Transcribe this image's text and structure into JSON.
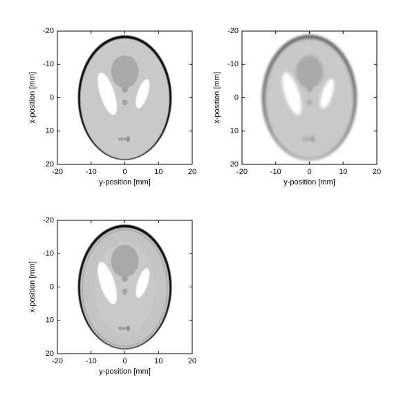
{
  "chart_data": [
    {
      "type": "image",
      "xlabel": "y-position [mm]",
      "ylabel": "x-position [mm]",
      "xlim": [
        -20,
        20
      ],
      "ylim": [
        -20,
        20
      ],
      "y_reversed": true,
      "xticks": [
        -20,
        -10,
        0,
        10,
        20
      ],
      "yticks": [
        -20,
        -10,
        0,
        10,
        20
      ]
    },
    {
      "type": "image",
      "xlabel": "y-position [mm]",
      "ylabel": "x-position [mm]",
      "xlim": [
        -20,
        20
      ],
      "ylim": [
        -20,
        20
      ],
      "y_reversed": true,
      "xticks": [
        -20,
        -10,
        0,
        10,
        20
      ],
      "yticks": [
        -20,
        -10,
        0,
        10,
        20
      ]
    },
    {
      "type": "image",
      "xlabel": "y-position [mm]",
      "ylabel": "x-position [mm]",
      "xlim": [
        -20,
        20
      ],
      "ylim": [
        -20,
        20
      ],
      "y_reversed": true,
      "xticks": [
        -20,
        -10,
        0,
        10,
        20
      ],
      "yticks": [
        -20,
        -10,
        0,
        10,
        20
      ]
    }
  ]
}
